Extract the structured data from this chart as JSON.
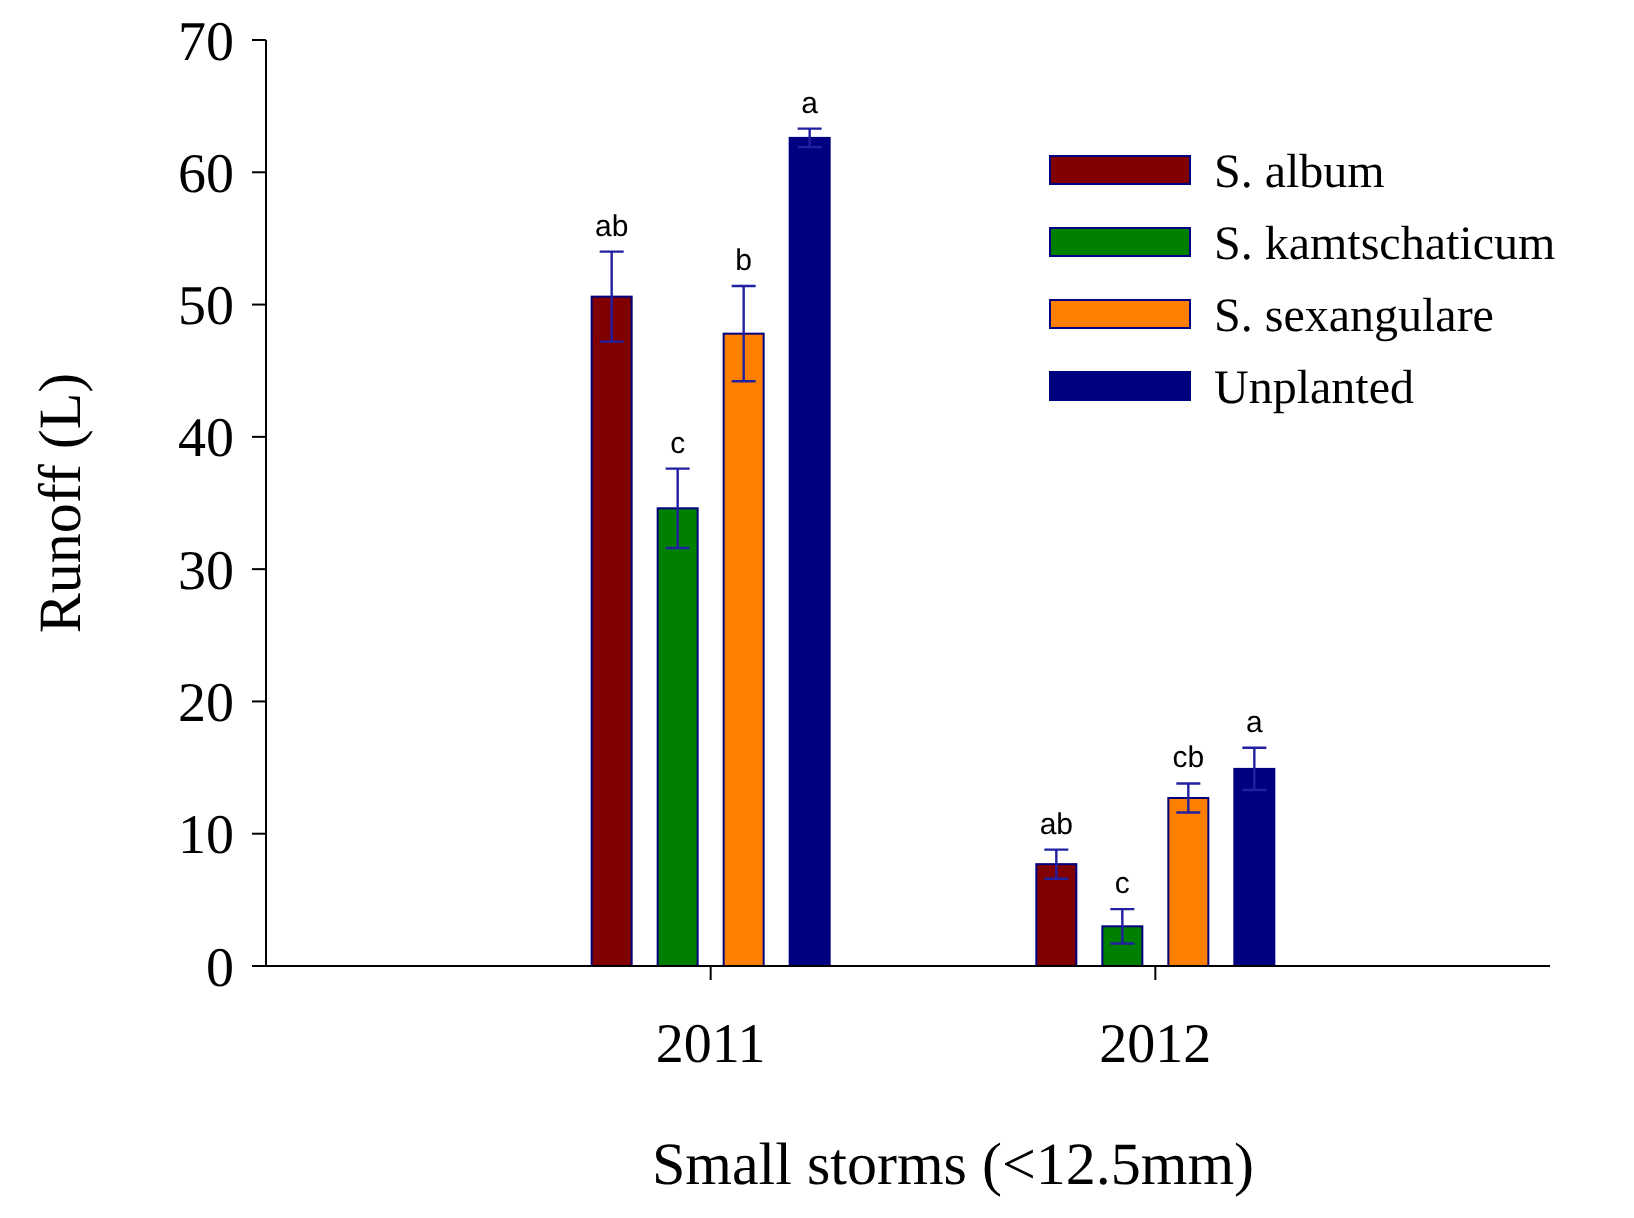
{
  "chart_data": {
    "type": "bar",
    "xlabel": "Small storms (<12.5mm)",
    "ylabel": "Runoff (L)",
    "categories": [
      "2011",
      "2012"
    ],
    "series": [
      {
        "name": "S. album",
        "color": "#800000",
        "values": [
          50.6,
          7.7
        ],
        "errors": [
          3.4,
          1.1
        ]
      },
      {
        "name": "S. kamtschaticum",
        "color": "#008000",
        "values": [
          34.6,
          3.0
        ],
        "errors": [
          3.0,
          1.3
        ]
      },
      {
        "name": "S. sexangulare",
        "color": "#ff8000",
        "values": [
          47.8,
          12.7
        ],
        "errors": [
          3.6,
          1.1
        ]
      },
      {
        "name": "Unplanted",
        "color": "#000080",
        "values": [
          62.6,
          14.9
        ],
        "errors": [
          0.7,
          1.6
        ]
      }
    ],
    "ylim": [
      0,
      70
    ],
    "yticks": [
      0,
      10,
      20,
      30,
      40,
      50,
      60,
      70
    ],
    "grid": false,
    "legend": "top right",
    "annotations": [
      "ab",
      "c",
      "b",
      "a",
      "ab",
      "c",
      "cb",
      "a"
    ]
  }
}
